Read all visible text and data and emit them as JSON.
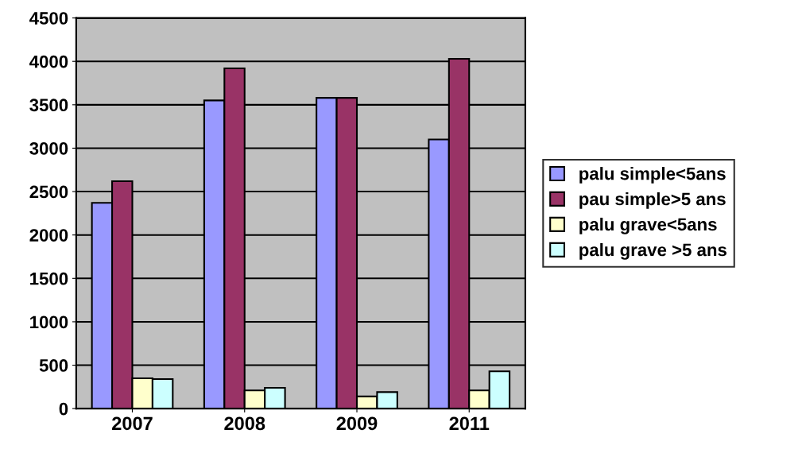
{
  "chart_data": {
    "type": "bar",
    "categories": [
      "2007",
      "2008",
      "2009",
      "2011"
    ],
    "series": [
      {
        "name": "palu simple<5ans",
        "color": "#9999ff",
        "values": [
          2370,
          3550,
          3580,
          3100
        ]
      },
      {
        "name": "pau simple>5 ans",
        "color": "#993366",
        "values": [
          2620,
          3920,
          3580,
          4030
        ]
      },
      {
        "name": "palu grave<5ans",
        "color": "#ffffcc",
        "values": [
          350,
          210,
          140,
          210
        ]
      },
      {
        "name": "palu grave >5 ans",
        "color": "#ccffff",
        "values": [
          340,
          240,
          190,
          430
        ]
      }
    ],
    "ylim": [
      0,
      4500
    ],
    "yticks": [
      0,
      500,
      1000,
      1500,
      2000,
      2500,
      3000,
      3500,
      4000,
      4500
    ],
    "grid": "y",
    "legend": "right"
  }
}
